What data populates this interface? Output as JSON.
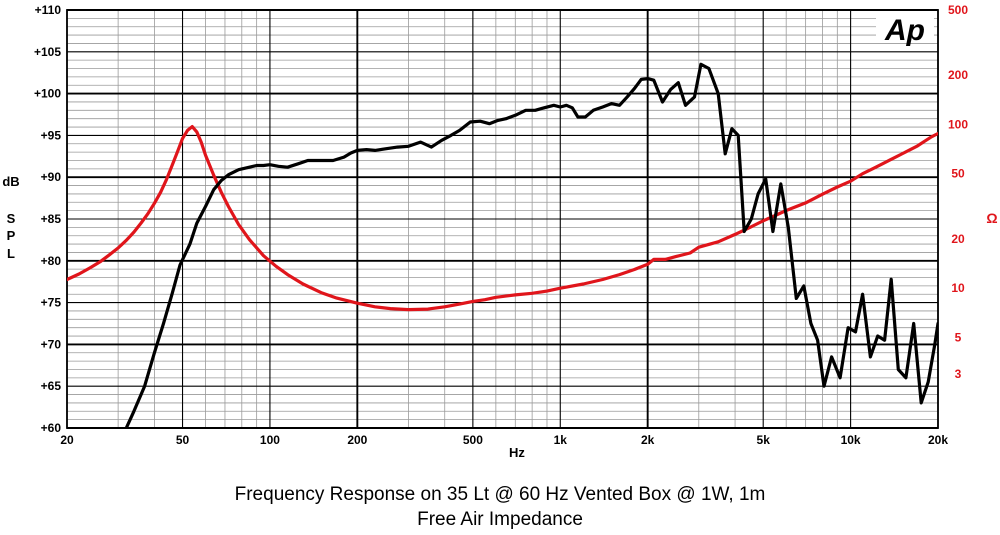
{
  "chart_data": {
    "type": "line",
    "xlabel": "Hz",
    "ylabel": "dB SPL",
    "ylabel_right": "Ω",
    "x_scale": "log",
    "xlim": [
      20,
      20000
    ],
    "ylim": [
      60,
      110
    ],
    "ylim_right": [
      1.4,
      500
    ],
    "y_right_scale": "log",
    "grid": true,
    "x_ticks": [
      {
        "value": 20,
        "label": "20"
      },
      {
        "value": 50,
        "label": "50"
      },
      {
        "value": 100,
        "label": "100"
      },
      {
        "value": 200,
        "label": "200"
      },
      {
        "value": 500,
        "label": "500"
      },
      {
        "value": 1000,
        "label": "1k"
      },
      {
        "value": 2000,
        "label": "2k"
      },
      {
        "value": 5000,
        "label": "5k"
      },
      {
        "value": 10000,
        "label": "10k"
      },
      {
        "value": 20000,
        "label": "20k"
      }
    ],
    "y_ticks": [
      {
        "value": 110,
        "label": "+110"
      },
      {
        "value": 105,
        "label": "+105"
      },
      {
        "value": 100,
        "label": "+100"
      },
      {
        "value": 95,
        "label": "+95"
      },
      {
        "value": 90,
        "label": "+90"
      },
      {
        "value": 85,
        "label": "+85"
      },
      {
        "value": 80,
        "label": "+80"
      },
      {
        "value": 75,
        "label": "+75"
      },
      {
        "value": 70,
        "label": "+70"
      },
      {
        "value": 65,
        "label": "+65"
      },
      {
        "value": 60,
        "label": "+60"
      }
    ],
    "y_right_ticks": [
      {
        "value": 500,
        "label": "500"
      },
      {
        "value": 200,
        "label": "200"
      },
      {
        "value": 100,
        "label": "100"
      },
      {
        "value": 50,
        "label": "50"
      },
      {
        "value": 20,
        "label": "20"
      },
      {
        "value": 10,
        "label": "10"
      },
      {
        "value": 5,
        "label": "5"
      },
      {
        "value": 3,
        "label": "3"
      }
    ],
    "series": [
      {
        "name": "Frequency Response on 35 Lt @ 60 Hz Vented Box @ 1W, 1m",
        "axis": "left",
        "color": "#000000",
        "points": [
          [
            32,
            60
          ],
          [
            34,
            62
          ],
          [
            37,
            65
          ],
          [
            40,
            69
          ],
          [
            43,
            72.5
          ],
          [
            46,
            76
          ],
          [
            49,
            79.5
          ],
          [
            53,
            82
          ],
          [
            56,
            84.5
          ],
          [
            60,
            86.5
          ],
          [
            64,
            88.5
          ],
          [
            68,
            89.6
          ],
          [
            72,
            90.3
          ],
          [
            78,
            90.9
          ],
          [
            85,
            91.2
          ],
          [
            90,
            91.4
          ],
          [
            95,
            91.4
          ],
          [
            100,
            91.5
          ],
          [
            107,
            91.3
          ],
          [
            115,
            91.2
          ],
          [
            125,
            91.6
          ],
          [
            135,
            92.0
          ],
          [
            150,
            92.0
          ],
          [
            165,
            92.0
          ],
          [
            180,
            92.4
          ],
          [
            190,
            92.9
          ],
          [
            200,
            93.2
          ],
          [
            215,
            93.3
          ],
          [
            230,
            93.2
          ],
          [
            250,
            93.4
          ],
          [
            275,
            93.6
          ],
          [
            300,
            93.7
          ],
          [
            330,
            94.2
          ],
          [
            360,
            93.6
          ],
          [
            390,
            94.4
          ],
          [
            420,
            95.0
          ],
          [
            450,
            95.6
          ],
          [
            490,
            96.6
          ],
          [
            530,
            96.7
          ],
          [
            570,
            96.4
          ],
          [
            610,
            96.8
          ],
          [
            650,
            97.0
          ],
          [
            700,
            97.4
          ],
          [
            760,
            98.0
          ],
          [
            820,
            98.0
          ],
          [
            880,
            98.3
          ],
          [
            950,
            98.6
          ],
          [
            1000,
            98.4
          ],
          [
            1050,
            98.6
          ],
          [
            1100,
            98.3
          ],
          [
            1150,
            97.2
          ],
          [
            1220,
            97.2
          ],
          [
            1300,
            98.0
          ],
          [
            1400,
            98.4
          ],
          [
            1500,
            98.8
          ],
          [
            1600,
            98.6
          ],
          [
            1700,
            99.6
          ],
          [
            1800,
            100.6
          ],
          [
            1900,
            101.7
          ],
          [
            2000,
            101.8
          ],
          [
            2100,
            101.6
          ],
          [
            2250,
            99.0
          ],
          [
            2400,
            100.5
          ],
          [
            2550,
            101.3
          ],
          [
            2700,
            98.6
          ],
          [
            2900,
            99.6
          ],
          [
            3050,
            103.5
          ],
          [
            3250,
            103.0
          ],
          [
            3500,
            100.0
          ],
          [
            3700,
            92.8
          ],
          [
            3900,
            95.8
          ],
          [
            4100,
            95.0
          ],
          [
            4300,
            83.5
          ],
          [
            4550,
            85.0
          ],
          [
            4800,
            88.0
          ],
          [
            5100,
            89.8
          ],
          [
            5400,
            83.5
          ],
          [
            5750,
            89.2
          ],
          [
            6100,
            84.0
          ],
          [
            6500,
            75.5
          ],
          [
            6900,
            77.0
          ],
          [
            7300,
            72.5
          ],
          [
            7700,
            70.5
          ],
          [
            8100,
            65.0
          ],
          [
            8600,
            68.5
          ],
          [
            9200,
            66.0
          ],
          [
            9800,
            72.0
          ],
          [
            10400,
            71.5
          ],
          [
            11000,
            76.0
          ],
          [
            11700,
            68.5
          ],
          [
            12400,
            71.0
          ],
          [
            13100,
            70.5
          ],
          [
            13800,
            77.8
          ],
          [
            14600,
            67.0
          ],
          [
            15500,
            66.0
          ],
          [
            16500,
            72.5
          ],
          [
            17500,
            63.0
          ],
          [
            18500,
            65.5
          ],
          [
            19500,
            70.0
          ],
          [
            20000,
            72.5
          ]
        ]
      },
      {
        "name": "Free Air Impedance",
        "axis": "right",
        "color": "#e0151b",
        "points": [
          [
            20,
            11.3
          ],
          [
            22,
            12.2
          ],
          [
            24,
            13.3
          ],
          [
            26,
            14.5
          ],
          [
            28,
            16.0
          ],
          [
            30,
            17.6
          ],
          [
            32,
            19.6
          ],
          [
            34,
            22.0
          ],
          [
            36,
            25.0
          ],
          [
            38,
            28.5
          ],
          [
            40,
            33.0
          ],
          [
            42,
            38.5
          ],
          [
            44,
            46.0
          ],
          [
            46,
            56.0
          ],
          [
            48,
            68.0
          ],
          [
            50,
            82.0
          ],
          [
            52,
            92.0
          ],
          [
            54,
            97.0
          ],
          [
            56,
            90.0
          ],
          [
            58,
            78.0
          ],
          [
            60,
            65.0
          ],
          [
            64,
            49.0
          ],
          [
            68,
            38.5
          ],
          [
            72,
            31.5
          ],
          [
            78,
            24.5
          ],
          [
            85,
            19.8
          ],
          [
            95,
            15.8
          ],
          [
            105,
            13.6
          ],
          [
            115,
            12.1
          ],
          [
            130,
            10.6
          ],
          [
            150,
            9.4
          ],
          [
            170,
            8.7
          ],
          [
            200,
            8.1
          ],
          [
            230,
            7.7
          ],
          [
            260,
            7.5
          ],
          [
            300,
            7.4
          ],
          [
            350,
            7.45
          ],
          [
            400,
            7.7
          ],
          [
            450,
            8.0
          ],
          [
            500,
            8.3
          ],
          [
            550,
            8.5
          ],
          [
            600,
            8.8
          ],
          [
            700,
            9.1
          ],
          [
            800,
            9.3
          ],
          [
            900,
            9.6
          ],
          [
            1000,
            10.0
          ],
          [
            1200,
            10.6
          ],
          [
            1400,
            11.3
          ],
          [
            1600,
            12.1
          ],
          [
            1800,
            13.0
          ],
          [
            2000,
            14.0
          ],
          [
            2100,
            15.0
          ],
          [
            2300,
            15.0
          ],
          [
            2500,
            15.6
          ],
          [
            2800,
            16.4
          ],
          [
            3000,
            17.8
          ],
          [
            3500,
            19.2
          ],
          [
            4000,
            21.3
          ],
          [
            4500,
            23.5
          ],
          [
            5000,
            25.8
          ],
          [
            5500,
            27.8
          ],
          [
            6000,
            29.8
          ],
          [
            7000,
            33.2
          ],
          [
            8000,
            37.5
          ],
          [
            9000,
            41.5
          ],
          [
            10000,
            45.0
          ],
          [
            11000,
            50.0
          ],
          [
            12000,
            54.0
          ],
          [
            13000,
            58.0
          ],
          [
            14000,
            62.0
          ],
          [
            15000,
            66.0
          ],
          [
            16000,
            70.0
          ],
          [
            17000,
            74.0
          ],
          [
            18000,
            79.0
          ],
          [
            19000,
            84.0
          ],
          [
            20000,
            88.0
          ]
        ]
      }
    ],
    "axis_label_left_lines": [
      "dB",
      "S",
      "P",
      "L"
    ]
  },
  "logo_text": "Ap",
  "caption": {
    "line1": "Frequency Response on 35 Lt @ 60 Hz Vented Box @ 1W, 1m",
    "line2": "Free Air Impedance"
  },
  "colors": {
    "spl_curve": "#000000",
    "impedance_curve": "#e0151b",
    "right_axis": "#e0151b"
  }
}
